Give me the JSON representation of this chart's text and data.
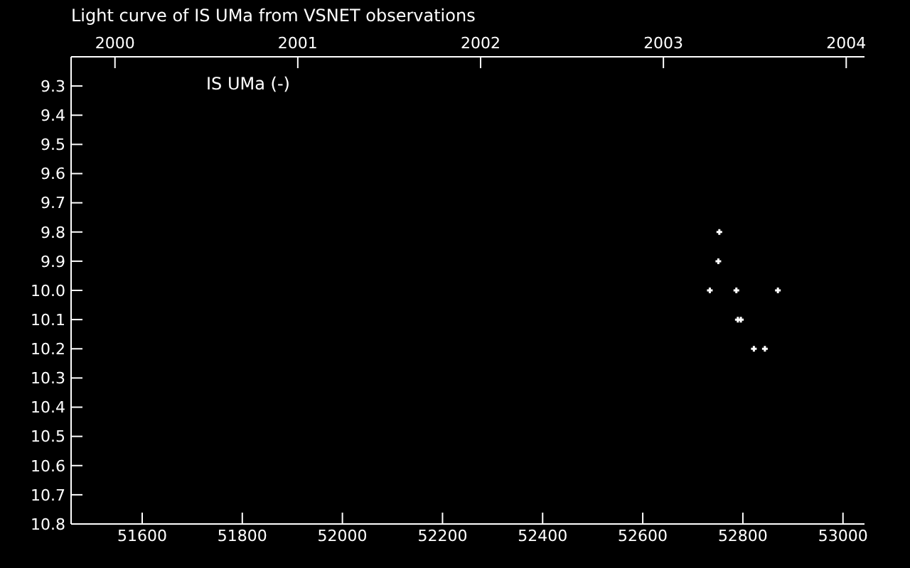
{
  "chart_data": {
    "type": "scatter",
    "title": "Light curve of IS UMa from VSNET observations",
    "xlim": [
      51458,
      53043
    ],
    "xticks": [
      51600,
      51800,
      52000,
      52200,
      52400,
      52600,
      52800,
      53000
    ],
    "x2lim": [
      1999.76,
      2004.1
    ],
    "x2ticks": [
      2000,
      2001,
      2002,
      2003,
      2004
    ],
    "ylim": [
      10.8,
      9.2
    ],
    "yticks": [
      9.3,
      9.4,
      9.5,
      9.6,
      9.7,
      9.8,
      9.9,
      {
        "value": 10,
        "label": "10.0"
      },
      10.1,
      10.2,
      10.3,
      10.4,
      10.5,
      10.6,
      10.7,
      10.8
    ],
    "series": [
      {
        "name": "IS UMa (-)",
        "color": "#ffffff",
        "x": [
          52753,
          52751,
          52734,
          52787,
          52870,
          52790,
          52796,
          52822,
          52844
        ],
        "values": [
          9.8,
          9.9,
          10.0,
          10.0,
          10.0,
          10.1,
          10.1,
          10.2,
          10.2
        ]
      }
    ],
    "marker": "cross",
    "grid": false,
    "legend": "top left"
  }
}
